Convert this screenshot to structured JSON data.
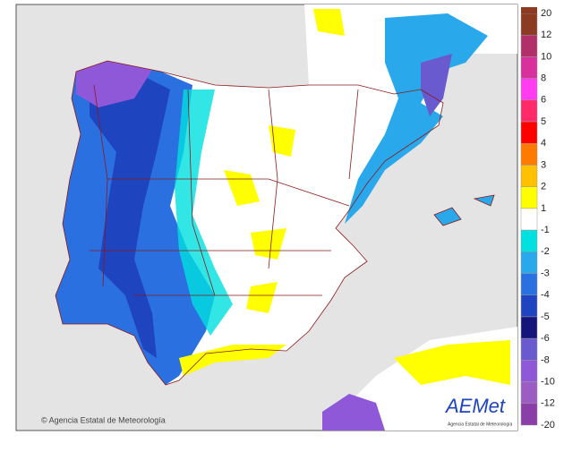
{
  "legend": {
    "labels": [
      "20",
      "12",
      "10",
      "8",
      "6",
      "5",
      "4",
      "3",
      "2",
      "1",
      "-1",
      "-2",
      "-3",
      "-4",
      "-5",
      "-6",
      "-8",
      "-10",
      "-12",
      "-20"
    ],
    "colors": [
      "#8c3a22",
      "#b0306a",
      "#d8309c",
      "#ff3cf0",
      "#ff2a6a",
      "#ff0000",
      "#ff7a00",
      "#ffc000",
      "#ffff00",
      "#ffffff",
      "#00e0e0",
      "#2aa8ec",
      "#2a70e0",
      "#1e44c0",
      "#14147a",
      "#6a5ad0",
      "#8e58d8",
      "#9b5cc4",
      "#8a3ea8"
    ]
  },
  "credit": "© Agencia Estatal de Meteorología",
  "logo": {
    "name": "AEMet",
    "subtitle": "Agencia Estatal de Meteorología"
  }
}
